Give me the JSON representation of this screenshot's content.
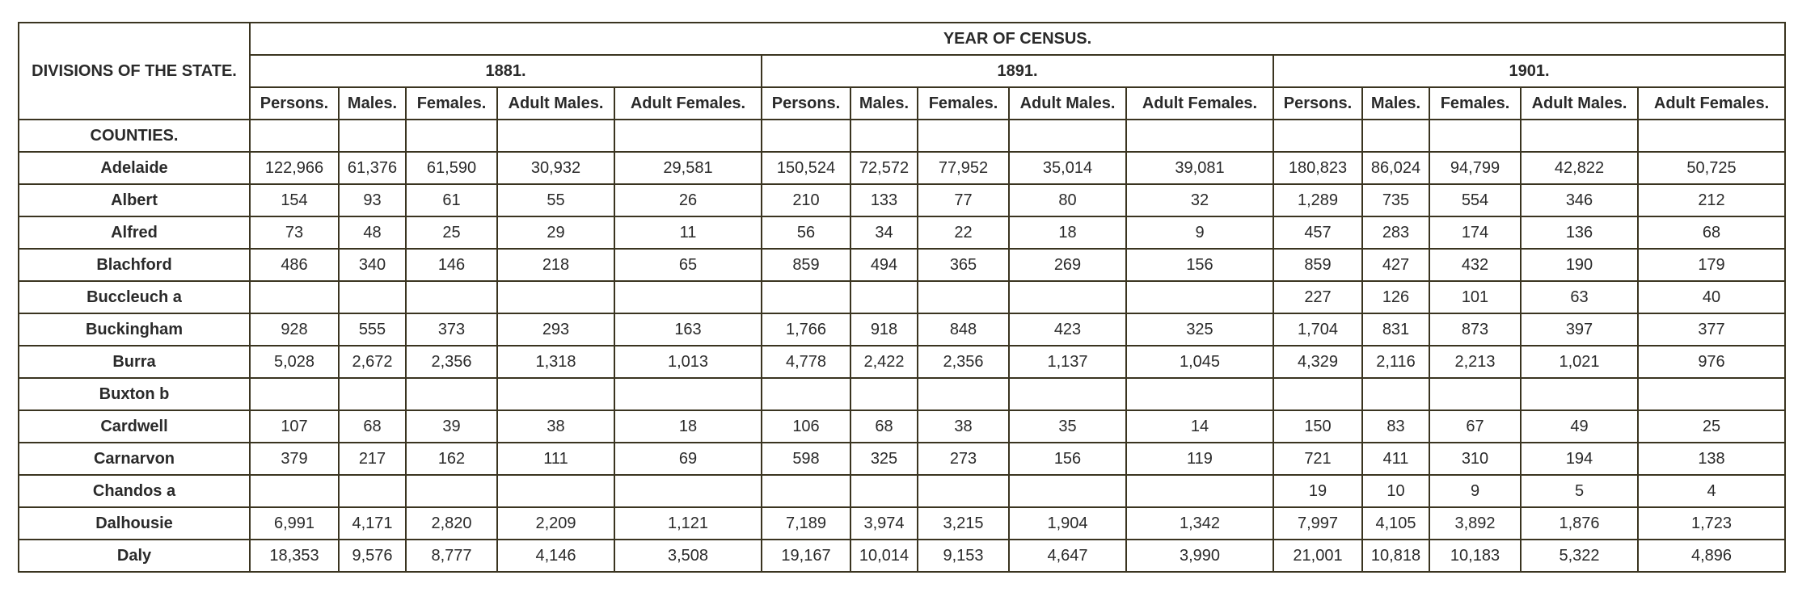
{
  "table": {
    "header_division": "DIVISIONS OF THE STATE.",
    "header_group": "YEAR OF CENSUS.",
    "years": [
      "1881.",
      "1891.",
      "1901."
    ],
    "columns": [
      "Persons.",
      "Males.",
      "Females.",
      "Adult Males.",
      "Adult Females."
    ],
    "section_label": "COUNTIES.",
    "rows": [
      {
        "name": "Adelaide",
        "values": [
          "122,966",
          "61,376",
          "61,590",
          "30,932",
          "29,581",
          "150,524",
          "72,572",
          "77,952",
          "35,014",
          "39,081",
          "180,823",
          "86,024",
          "94,799",
          "42,822",
          "50,725"
        ]
      },
      {
        "name": "Albert",
        "values": [
          "154",
          "93",
          "61",
          "55",
          "26",
          "210",
          "133",
          "77",
          "80",
          "32",
          "1,289",
          "735",
          "554",
          "346",
          "212"
        ]
      },
      {
        "name": "Alfred",
        "values": [
          "73",
          "48",
          "25",
          "29",
          "11",
          "56",
          "34",
          "22",
          "18",
          "9",
          "457",
          "283",
          "174",
          "136",
          "68"
        ]
      },
      {
        "name": "Blachford",
        "values": [
          "486",
          "340",
          "146",
          "218",
          "65",
          "859",
          "494",
          "365",
          "269",
          "156",
          "859",
          "427",
          "432",
          "190",
          "179"
        ]
      },
      {
        "name": "Buccleuch a",
        "values": [
          "",
          "",
          "",
          "",
          "",
          "",
          "",
          "",
          "",
          "",
          "227",
          "126",
          "101",
          "63",
          "40"
        ]
      },
      {
        "name": "Buckingham",
        "values": [
          "928",
          "555",
          "373",
          "293",
          "163",
          "1,766",
          "918",
          "848",
          "423",
          "325",
          "1,704",
          "831",
          "873",
          "397",
          "377"
        ]
      },
      {
        "name": "Burra",
        "values": [
          "5,028",
          "2,672",
          "2,356",
          "1,318",
          "1,013",
          "4,778",
          "2,422",
          "2,356",
          "1,137",
          "1,045",
          "4,329",
          "2,116",
          "2,213",
          "1,021",
          "976"
        ]
      },
      {
        "name": "Buxton b",
        "values": [
          "",
          "",
          "",
          "",
          "",
          "",
          "",
          "",
          "",
          "",
          "",
          "",
          "",
          "",
          ""
        ]
      },
      {
        "name": "Cardwell",
        "values": [
          "107",
          "68",
          "39",
          "38",
          "18",
          "106",
          "68",
          "38",
          "35",
          "14",
          "150",
          "83",
          "67",
          "49",
          "25"
        ]
      },
      {
        "name": "Carnarvon",
        "values": [
          "379",
          "217",
          "162",
          "111",
          "69",
          "598",
          "325",
          "273",
          "156",
          "119",
          "721",
          "411",
          "310",
          "194",
          "138"
        ]
      },
      {
        "name": "Chandos a",
        "values": [
          "",
          "",
          "",
          "",
          "",
          "",
          "",
          "",
          "",
          "",
          "19",
          "10",
          "9",
          "5",
          "4"
        ]
      },
      {
        "name": "Dalhousie",
        "values": [
          "6,991",
          "4,171",
          "2,820",
          "2,209",
          "1,121",
          "7,189",
          "3,974",
          "3,215",
          "1,904",
          "1,342",
          "7,997",
          "4,105",
          "3,892",
          "1,876",
          "1,723"
        ]
      },
      {
        "name": "Daly",
        "values": [
          "18,353",
          "9,576",
          "8,777",
          "4,146",
          "3,508",
          "19,167",
          "10,014",
          "9,153",
          "4,647",
          "3,990",
          "21,001",
          "10,818",
          "10,183",
          "5,322",
          "4,896"
        ]
      }
    ]
  }
}
